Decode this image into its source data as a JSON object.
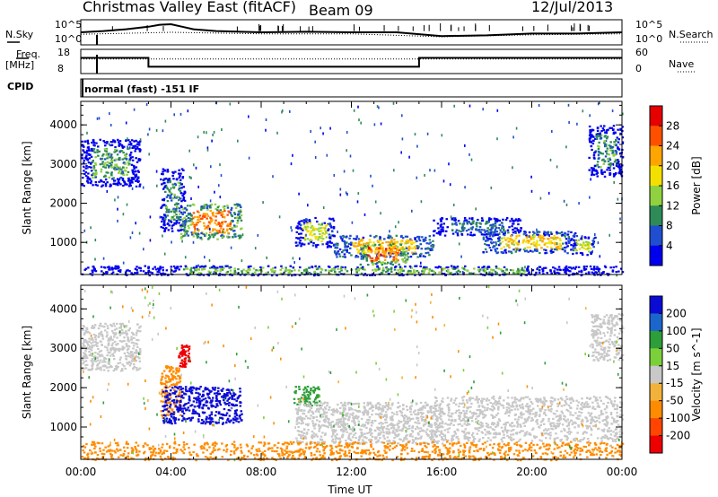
{
  "header": {
    "title": "Christmas Valley East (fitACF)",
    "beam": "Beam 09",
    "date": "12/Jul/2013",
    "cpid_label": "CPID",
    "cpid_value": "normal (fast) -151 IF",
    "nsky_label": "N.Sky",
    "nsearch_label": "N.Search",
    "freq_label": "Freq.",
    "freq_unit": "[MHz]",
    "nave_label": "Nave",
    "nsky_ticks": [
      "10^5",
      "10^0"
    ],
    "nsearch_ticks": [
      "10^5",
      "10^0"
    ],
    "freq_ticks": [
      "18",
      "8"
    ],
    "nave_ticks": [
      "60",
      "0"
    ]
  },
  "chart_data": [
    {
      "type": "line",
      "panel": "noise",
      "x_unit": "hours UT",
      "xlim": [
        0,
        24
      ],
      "series": [
        {
          "name": "N.Sky",
          "style": "solid",
          "x": [
            0,
            1,
            2,
            3,
            3.5,
            4,
            4.5,
            5,
            6,
            8,
            10,
            12,
            14,
            16,
            18,
            20,
            22,
            24
          ],
          "values": [
            0.5,
            0.55,
            0.62,
            0.72,
            0.8,
            0.82,
            0.72,
            0.62,
            0.55,
            0.5,
            0.52,
            0.5,
            0.5,
            0.35,
            0.38,
            0.45,
            0.45,
            0.5
          ]
        },
        {
          "name": "N.Search",
          "style": "dotted",
          "x": [
            0,
            4,
            8,
            12,
            16,
            20,
            24
          ],
          "values": [
            0.42,
            0.5,
            0.44,
            0.44,
            0.32,
            0.4,
            0.44
          ]
        }
      ]
    },
    {
      "type": "line",
      "panel": "frequency",
      "x_unit": "hours UT",
      "xlim": [
        0,
        24
      ],
      "series": [
        {
          "name": "Freq.",
          "style": "solid",
          "x": [
            0,
            3.0,
            3.0,
            15.0,
            15.0,
            24
          ],
          "values": [
            14.5,
            14.5,
            10.8,
            10.8,
            14.5,
            14.5
          ]
        },
        {
          "name": "Nave",
          "style": "dotted",
          "x": [
            0,
            24
          ],
          "values": [
            14.0,
            14.0
          ]
        }
      ]
    },
    {
      "type": "heatmap",
      "panel": "power",
      "xlabel": "",
      "ylabel": "Slant Range [km]",
      "x_unit": "hours UT",
      "xlim": [
        0,
        24
      ],
      "ylim": [
        180,
        4600
      ],
      "yticks": [
        1000,
        2000,
        3000,
        4000
      ],
      "colorbar": {
        "label": "Power [dB]",
        "ticks": [
          4,
          8,
          12,
          16,
          20,
          24,
          28
        ],
        "colors": [
          "#0000ee",
          "#1f4fd0",
          "#2e8b57",
          "#8fd13f",
          "#f4e000",
          "#ffa500",
          "#ff5000",
          "#e60000"
        ]
      },
      "regions": [
        {
          "x": [
            0.0,
            2.6
          ],
          "y": [
            2450,
            3650
          ],
          "value": 11
        },
        {
          "x": [
            3.5,
            4.6
          ],
          "y": [
            1300,
            2900
          ],
          "value": 10
        },
        {
          "x": [
            4.4,
            7.1
          ],
          "y": [
            1100,
            2000
          ],
          "value": 24
        },
        {
          "x": [
            9.5,
            11.2
          ],
          "y": [
            900,
            1650
          ],
          "value": 16
        },
        {
          "x": [
            11.2,
            15.6
          ],
          "y": [
            650,
            1200
          ],
          "value": 20
        },
        {
          "x": [
            12.3,
            14.5
          ],
          "y": [
            450,
            1000
          ],
          "value": 25
        },
        {
          "x": [
            15.6,
            19.5
          ],
          "y": [
            1200,
            1650
          ],
          "value": 8
        },
        {
          "x": [
            17.8,
            22.0
          ],
          "y": [
            750,
            1300
          ],
          "value": 19
        },
        {
          "x": [
            21.7,
            22.8
          ],
          "y": [
            700,
            1200
          ],
          "value": 16
        },
        {
          "x": [
            22.5,
            24.0
          ],
          "y": [
            2700,
            4000
          ],
          "value": 10
        },
        {
          "x": [
            0.0,
            24.0
          ],
          "y": [
            180,
            420
          ],
          "value": 12
        }
      ]
    },
    {
      "type": "heatmap",
      "panel": "velocity",
      "xlabel": "Time UT",
      "ylabel": "Slant Range [km]",
      "x_unit": "hours UT",
      "xlim": [
        0,
        24
      ],
      "ylim": [
        180,
        4600
      ],
      "yticks": [
        1000,
        2000,
        3000,
        4000
      ],
      "xticks": [
        "00:00",
        "04:00",
        "08:00",
        "12:00",
        "16:00",
        "20:00",
        "00:00"
      ],
      "colorbar": {
        "label": "Velocity [m s^-1]",
        "ticks": [
          200,
          100,
          50,
          15,
          -15,
          -50,
          -100,
          -200
        ],
        "colors": [
          "#0b0bd6",
          "#1b66cc",
          "#2e9e3a",
          "#7bd03a",
          "#c8c8c8",
          "#f2b23a",
          "#ff8c00",
          "#ff4500",
          "#ee0000"
        ]
      },
      "regions": [
        {
          "x": [
            0.0,
            2.6
          ],
          "y": [
            2450,
            3650
          ],
          "value": 0
        },
        {
          "x": [
            3.5,
            4.4
          ],
          "y": [
            1300,
            2600
          ],
          "value": -60
        },
        {
          "x": [
            3.6,
            7.1
          ],
          "y": [
            1100,
            2050
          ],
          "value": 250
        },
        {
          "x": [
            4.3,
            4.8
          ],
          "y": [
            2550,
            3100
          ],
          "value": -250
        },
        {
          "x": [
            9.4,
            10.6
          ],
          "y": [
            1550,
            2050
          ],
          "value": 60
        },
        {
          "x": [
            9.5,
            16.0
          ],
          "y": [
            600,
            1650
          ],
          "value": 0
        },
        {
          "x": [
            15.5,
            24.0
          ],
          "y": [
            650,
            1800
          ],
          "value": 0
        },
        {
          "x": [
            22.6,
            24.0
          ],
          "y": [
            2700,
            3900
          ],
          "value": 0
        },
        {
          "x": [
            0.0,
            24.0
          ],
          "y": [
            180,
            650
          ],
          "value": -45
        }
      ]
    }
  ]
}
